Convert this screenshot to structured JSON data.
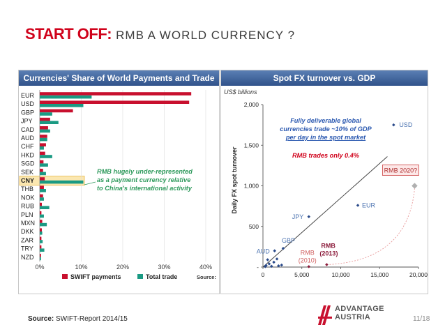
{
  "slide": {
    "title_lead": "START OFF:",
    "title_rest": "RMB A WORLD CURRENCY ?",
    "source_label": "Source:",
    "source_text": "SWIFT-Report 2014/15",
    "page": "11/18",
    "logo_line1": "ADVANTAGE",
    "logo_line2": "AUSTRIA",
    "colors": {
      "accent": "#d0021b",
      "header": "#3d5f96",
      "swift": "#c8102e",
      "trade": "#1a9a83",
      "annot": "#2e9a5c",
      "point": "#2a4a8a"
    }
  },
  "chart_data": [
    {
      "type": "bar",
      "orientation": "horizontal",
      "title": "Currencies' Share of World Payments and Trade",
      "categories": [
        "EUR",
        "USD",
        "GBP",
        "JPY",
        "CAD",
        "AUD",
        "CHF",
        "HKD",
        "SGD",
        "SEK",
        "CNY",
        "THB",
        "NOK",
        "RUB",
        "PLN",
        "MXN",
        "DKK",
        "ZAR",
        "TRY",
        "NZD"
      ],
      "series": [
        {
          "name": "SWIFT payments",
          "values": [
            36.5,
            36.0,
            8.0,
            2.5,
            2.0,
            1.8,
            1.5,
            1.3,
            0.9,
            0.8,
            1.2,
            1.0,
            0.8,
            0.5,
            0.4,
            0.6,
            0.5,
            0.4,
            0.4,
            0.3
          ]
        },
        {
          "name": "Total trade",
          "values": [
            12.5,
            10.5,
            3.0,
            4.5,
            2.5,
            1.8,
            1.0,
            3.0,
            2.0,
            1.5,
            10.5,
            1.5,
            1.0,
            2.3,
            1.0,
            1.7,
            0.6,
            0.7,
            1.1,
            0.3
          ]
        }
      ],
      "xlim": [
        0,
        40
      ],
      "xticks": [
        "0%",
        "10%",
        "20%",
        "30%",
        "40%"
      ],
      "highlight": "CNY",
      "annotation": "RMB hugely under-represented as a payment currency relative to China's international activity",
      "legend": [
        "SWIFT payments",
        "Total trade"
      ],
      "source_label": "Source:"
    },
    {
      "type": "scatter",
      "title": "Spot FX turnover vs. GDP",
      "units_label": "US$ billions",
      "ylabel": "Daily FX spot turnover",
      "xlim": [
        0,
        20000
      ],
      "ylim": [
        0,
        2000
      ],
      "xticks": [
        "0",
        "5,000",
        "10,000",
        "15,000",
        "20,000"
      ],
      "yticks": [
        "-",
        "500",
        "1,000",
        "1,500",
        "2,000"
      ],
      "points": [
        {
          "label": "USD",
          "x": 16800,
          "y": 1750
        },
        {
          "label": "EUR",
          "x": 12200,
          "y": 760
        },
        {
          "label": "JPY",
          "x": 5900,
          "y": 620
        },
        {
          "label": "GBP",
          "x": 2600,
          "y": 230
        },
        {
          "label": "AUD",
          "x": 1500,
          "y": 200
        },
        {
          "label": "RMB (2010)",
          "x": 5900,
          "y": 5
        },
        {
          "label": "RMB (2013)",
          "x": 8200,
          "y": 30
        },
        {
          "label": "RMB 2020?",
          "x": 19500,
          "y": 1000
        },
        {
          "label": "",
          "x": 400,
          "y": 20
        },
        {
          "label": "",
          "x": 600,
          "y": 90
        },
        {
          "label": "",
          "x": 800,
          "y": 40
        },
        {
          "label": "",
          "x": 1100,
          "y": 10
        },
        {
          "label": "",
          "x": 1400,
          "y": 60
        },
        {
          "label": "",
          "x": 1800,
          "y": 100
        },
        {
          "label": "",
          "x": 2000,
          "y": 15
        },
        {
          "label": "",
          "x": 2400,
          "y": 25
        },
        {
          "label": "",
          "x": 300,
          "y": 5
        }
      ],
      "trendline": {
        "from": [
          0,
          0
        ],
        "to": [
          16000,
          1360
        ]
      },
      "annotation_blue": [
        "Fully deliverable global",
        "currencies trade ~10% of GDP",
        "per day in the spot market"
      ],
      "annotation_red": "RMB trades only 0.4%"
    }
  ]
}
